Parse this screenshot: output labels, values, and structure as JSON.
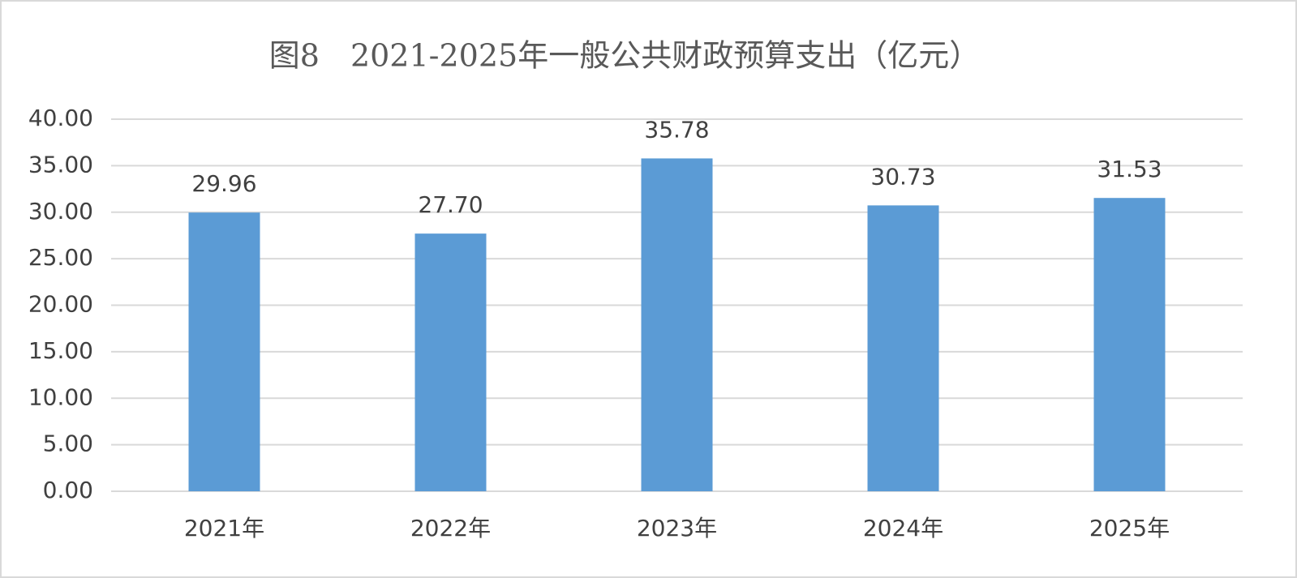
{
  "chart_data": {
    "type": "bar",
    "title": "图8　2021-2025年一般公共财政预算支出（亿元）",
    "categories": [
      "2021年",
      "2022年",
      "2023年",
      "2024年",
      "2025年"
    ],
    "values": [
      29.96,
      27.7,
      35.78,
      30.73,
      31.53
    ],
    "value_labels": [
      "29.96",
      "27.70",
      "35.78",
      "30.73",
      "31.53"
    ],
    "color": "#5b9bd5",
    "ylim": [
      0,
      40
    ],
    "yticks": [
      {
        "value": 0,
        "label": "0.00"
      },
      {
        "value": 5,
        "label": "5.00"
      },
      {
        "value": 10,
        "label": "10.00"
      },
      {
        "value": 15,
        "label": "15.00"
      },
      {
        "value": 20,
        "label": "20.00"
      },
      {
        "value": 25,
        "label": "25.00"
      },
      {
        "value": 30,
        "label": "30.00"
      },
      {
        "value": 35,
        "label": "35.00"
      },
      {
        "value": 40,
        "label": "40.00"
      }
    ],
    "grid": true
  }
}
